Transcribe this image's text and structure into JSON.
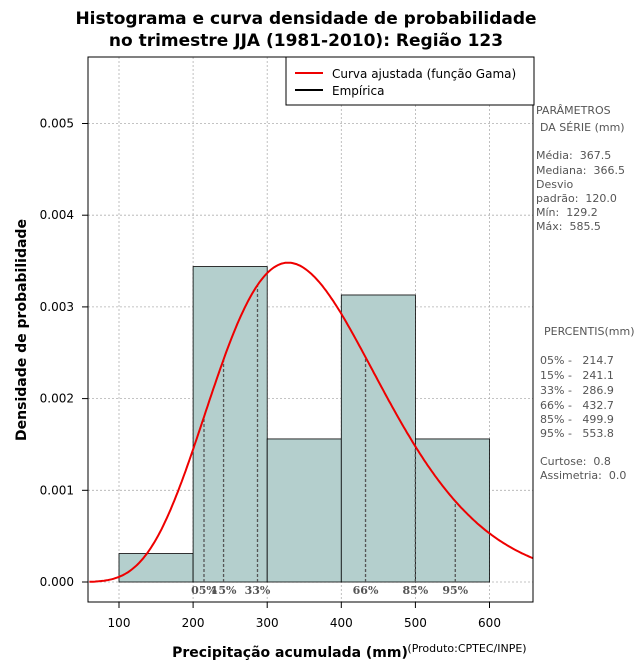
{
  "colors": {
    "bar_fill": "#b4cfcd",
    "curve": "#ee0000",
    "empirical": "#000000",
    "grid": "#b0b0b0",
    "percentile_line": "#555555",
    "side_text": "#555555"
  },
  "chart_data": {
    "type": "bar",
    "title": "Histograma e curva densidade de probabilidade",
    "subtitle": "no trimestre JJA (1981-2010): Região 123",
    "xlabel": "Precipitação acumulada (mm)",
    "ylabel": "Densidade de probabilidade",
    "credit": "(Produto:CPTEC/INPE)",
    "xlim": [
      60,
      660
    ],
    "ylim": [
      0,
      0.0056
    ],
    "x_ticks": [
      100,
      200,
      300,
      400,
      500,
      600
    ],
    "y_ticks": [
      0.0,
      0.001,
      0.002,
      0.003,
      0.004,
      0.005
    ],
    "y_tick_labels": [
      "0.000",
      "0.001",
      "0.002",
      "0.003",
      "0.004",
      "0.005"
    ],
    "grid": true,
    "bins": [
      {
        "from": 100,
        "to": 200,
        "density": 0.00031
      },
      {
        "from": 200,
        "to": 300,
        "density": 0.00344
      },
      {
        "from": 300,
        "to": 400,
        "density": 0.00156
      },
      {
        "from": 400,
        "to": 500,
        "density": 0.00313
      },
      {
        "from": 500,
        "to": 600,
        "density": 0.00156
      }
    ],
    "fitted_curve": {
      "name": "Curva ajustada (função Gama)",
      "mean": 367.5,
      "sd": 120.0
    },
    "legend": {
      "position": "top-right",
      "entries": [
        "Curva ajustada (função Gama)",
        "Empírica"
      ]
    },
    "percentile_markers": [
      {
        "label": "05%",
        "x": 214.7
      },
      {
        "label": "15%",
        "x": 241.1
      },
      {
        "label": "33%",
        "x": 286.9
      },
      {
        "label": "66%",
        "x": 432.7
      },
      {
        "label": "85%",
        "x": 499.9
      },
      {
        "label": "95%",
        "x": 553.8
      }
    ]
  },
  "stats": {
    "params_title_1": "PARÂMETROS",
    "params_title_2": "DA SÉRIE (mm)",
    "media": "Média:  367.5",
    "mediana": "Mediana:  366.5",
    "desvio_1": "Desvio",
    "desvio_2": "padrão:  120.0",
    "min": "Mín:  129.2",
    "max": "Máx:  585.5",
    "percentis_title": "PERCENTIS(mm)",
    "p05": "05% -   214.7",
    "p15": "15% -   241.1",
    "p33": "33% -   286.9",
    "p66": "66% -   432.7",
    "p85": "85% -   499.9",
    "p95": "95% -   553.8",
    "curtose": "Curtose:  0.8",
    "assimetria": "Assimetria:  0.0"
  }
}
